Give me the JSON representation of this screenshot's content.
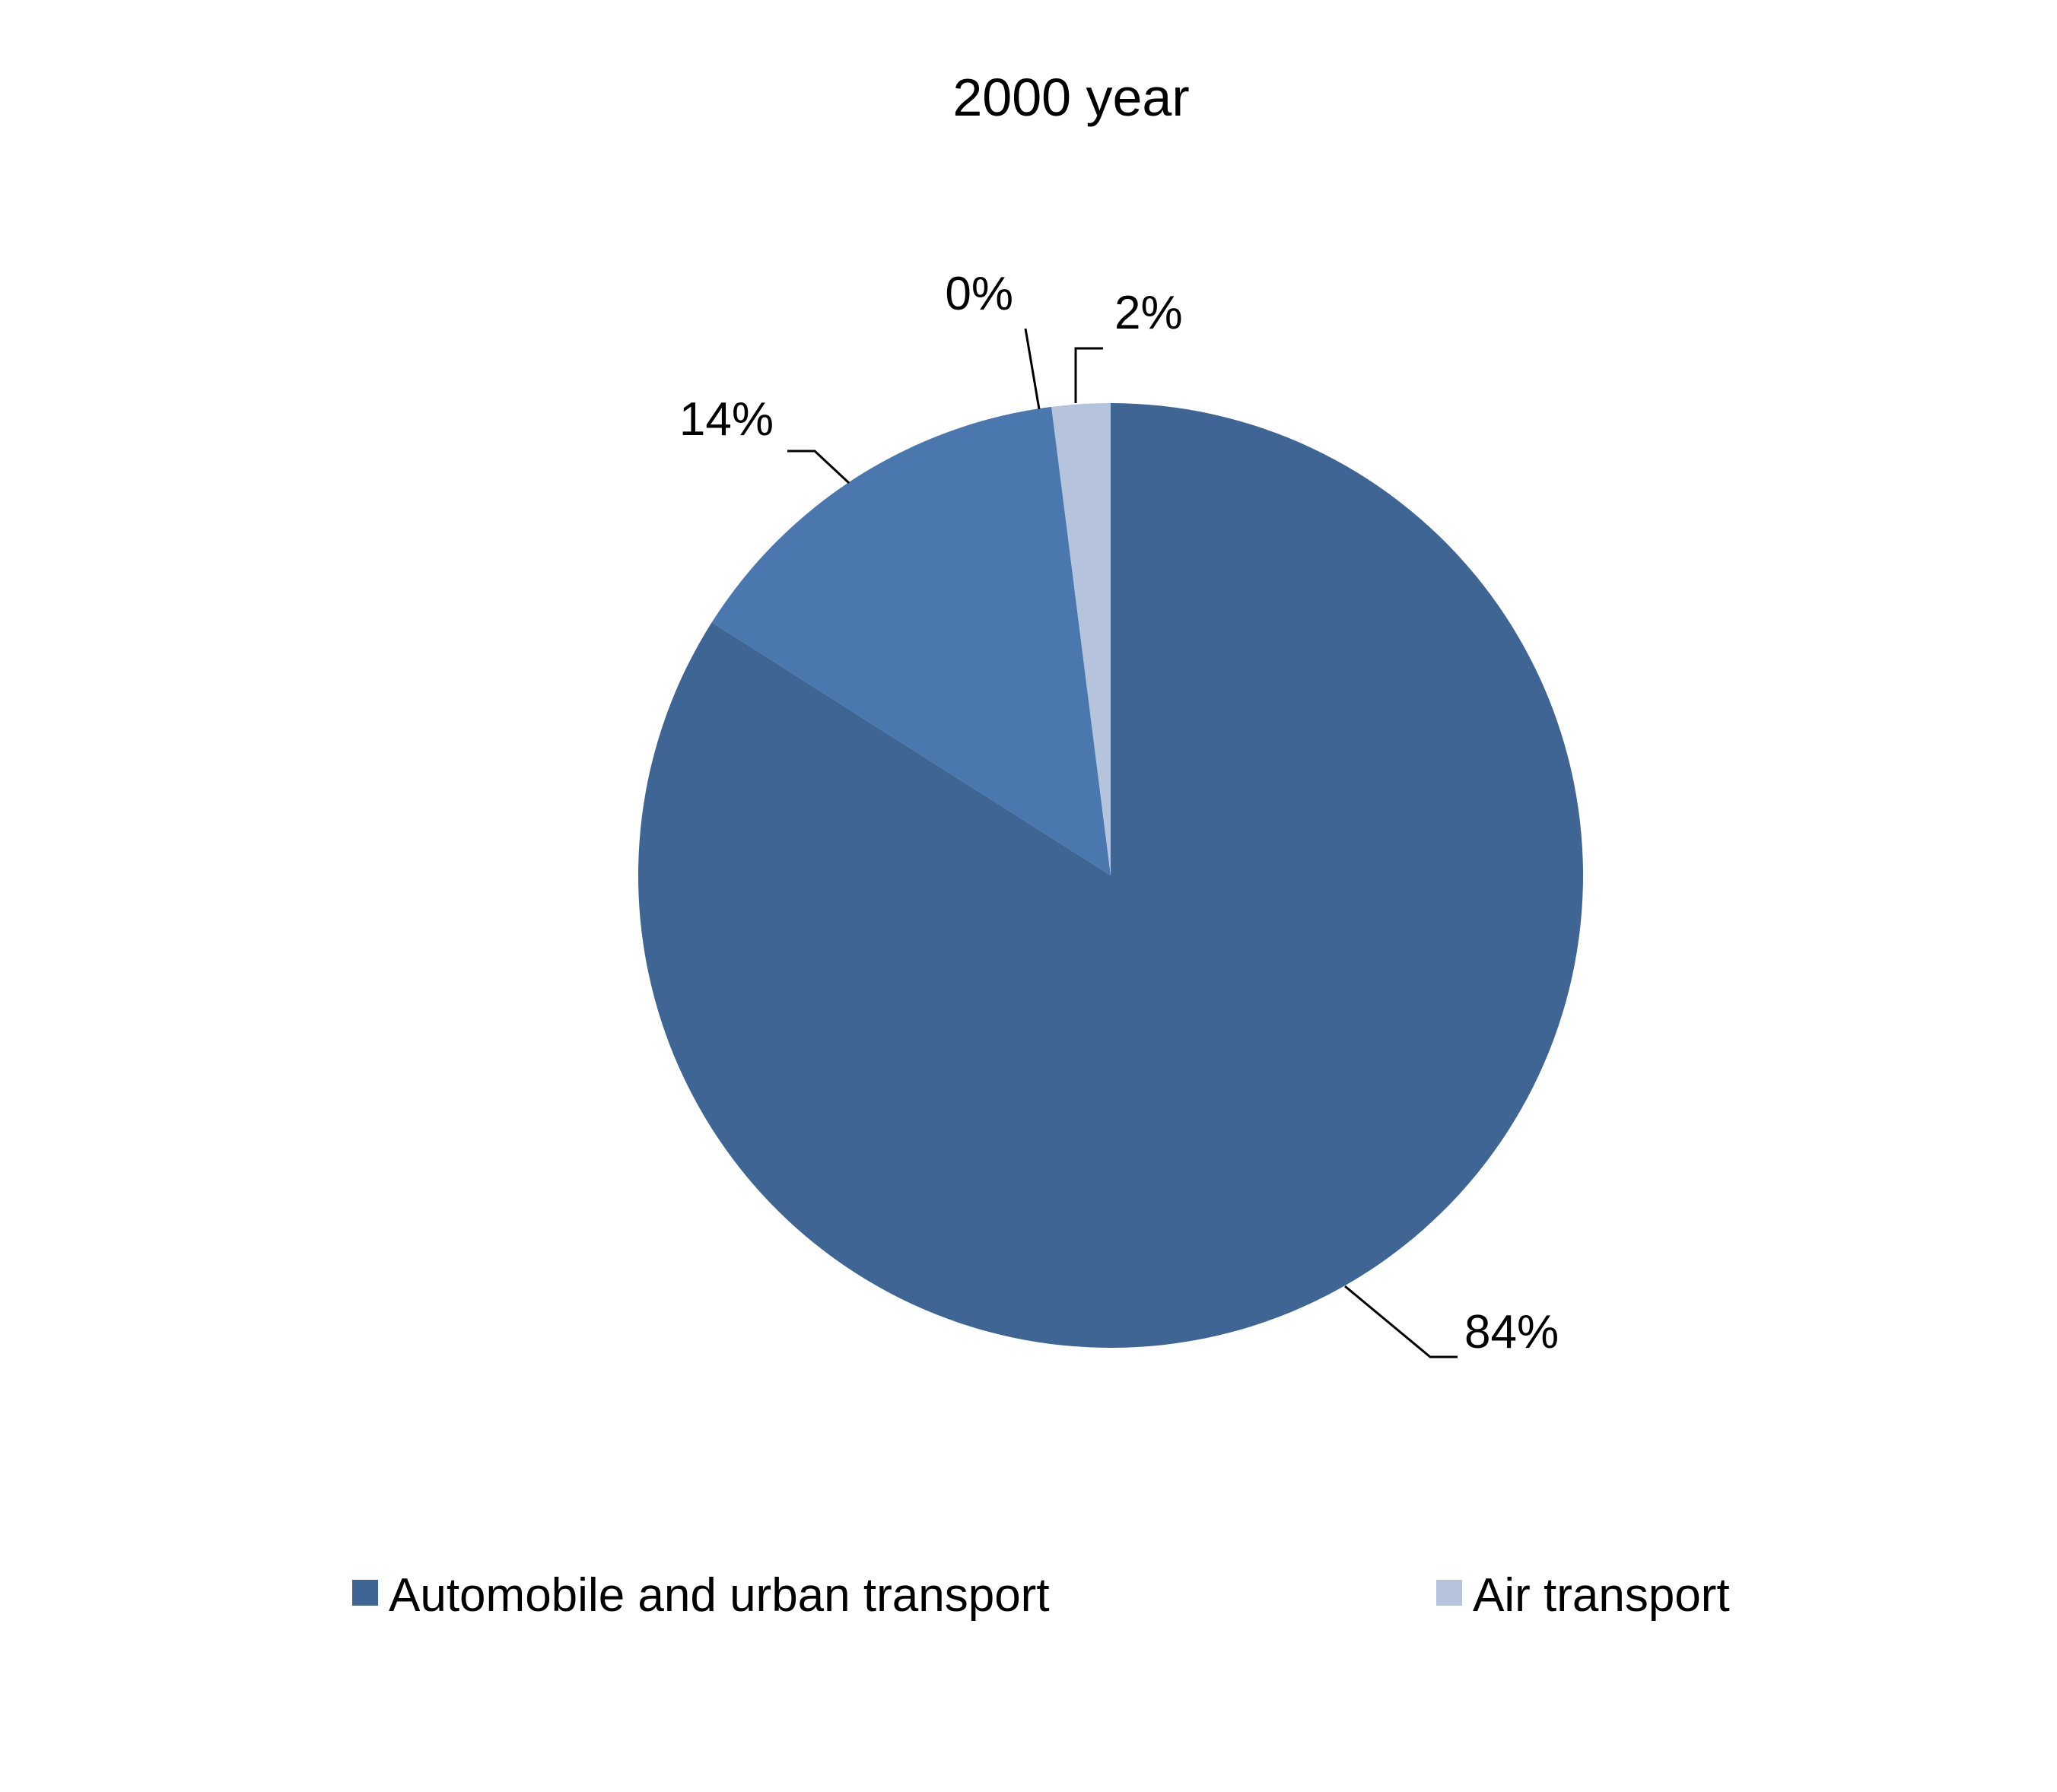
{
  "chart_data": {
    "type": "pie",
    "title": "2000 year",
    "start_angle_deg": 0,
    "direction": "clockwise",
    "slices": [
      {
        "name": "Automobile and urban transport",
        "value": 84,
        "label": "84%",
        "color": "#3e6594"
      },
      {
        "name": "",
        "value": 14,
        "label": "14%",
        "color": "#4a77ad"
      },
      {
        "name": "",
        "value": 0,
        "label": "0%",
        "color": "#2e4d74"
      },
      {
        "name": "Air transport",
        "value": 2,
        "label": "2%",
        "color": "#b5c3dd"
      }
    ],
    "legend": {
      "position": "bottom",
      "entries": [
        {
          "label": "Automobile and urban transport",
          "color": "#3e6594"
        },
        {
          "label": "Air transport",
          "color": "#b5c3dd"
        }
      ]
    }
  }
}
